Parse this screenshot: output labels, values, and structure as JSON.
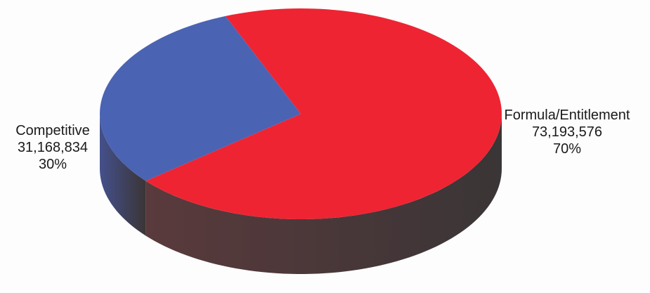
{
  "chart_data": {
    "type": "pie",
    "title": "",
    "slices": [
      {
        "label": "Formula/Entitlement",
        "value": 73193576,
        "value_label": "73,193,576",
        "percent_label": "70%",
        "color": "#ee2433",
        "side_color": "#5a3a3c"
      },
      {
        "label": "Competitive",
        "value": 31168834,
        "value_label": "31,168,834",
        "percent_label": "30%",
        "color": "#4b63b3",
        "side_color": "#44508c"
      }
    ],
    "style": "3d"
  }
}
